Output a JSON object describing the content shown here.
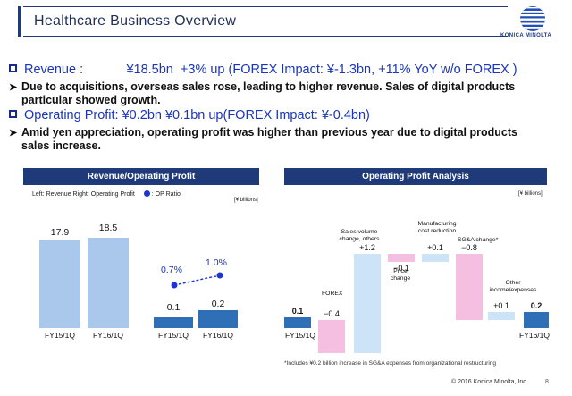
{
  "header": {
    "title": "Healthcare Business Overview",
    "logo_text": "KONICA MINOLTA"
  },
  "summary": {
    "revenue_line": "Revenue :            ¥18.5bn  +3% up (FOREX Impact: ¥-1.3bn, +11% YoY w/o FOREX )",
    "revenue_note_1": "Due to acquisitions, overseas sales rose, leading to higher revenue. Sales of digital products",
    "revenue_note_2": "particular showed growth.",
    "profit_line": "Operating Profit: ¥0.2bn ¥0.1bn up(FOREX Impact: ¥-0.4bn)",
    "profit_note_1": "Amid yen appreciation, operating profit was higher than previous year due to digital products",
    "profit_note_2": "sales increase."
  },
  "left_panel": {
    "heading": "Revenue/Operating Profit",
    "legend_text": "Left: Revenue  Right: Operating Profit",
    "legend_marker_label": ": OP Ratio",
    "unit": "[¥ billions]"
  },
  "right_panel": {
    "heading": "Operating Profit Analysis",
    "unit": "[¥ billions]"
  },
  "colors": {
    "navy": "#1f3a78",
    "revenue_bar": "#a9c8ec",
    "op_bar": "#2e6fb6",
    "pink": "#f4bfe0",
    "light_blue": "#cde3f7",
    "dot": "#1a35d0"
  },
  "chart_data": [
    {
      "type": "bar",
      "categories": [
        "FY15/1Q",
        "FY16/1Q"
      ],
      "series": [
        {
          "name": "Revenue",
          "values": [
            17.9,
            18.5
          ]
        }
      ],
      "value_labels": [
        "17.9",
        "18.5"
      ]
    },
    {
      "type": "bar",
      "categories": [
        "FY15/1Q",
        "FY16/1Q"
      ],
      "series": [
        {
          "name": "Operating Profit",
          "values": [
            0.1,
            0.2
          ]
        },
        {
          "name": "OP Ratio",
          "values": [
            0.7,
            1.0
          ]
        }
      ],
      "value_labels": [
        "0.1",
        "0.2"
      ],
      "ratio_labels": [
        "0.7%",
        "1.0%"
      ]
    },
    {
      "type": "bar",
      "categories": [
        "FY15/1Q",
        "FOREX",
        "Sales volume change, others",
        "Price change",
        "Manufacturing cost reduction",
        "SG&A change*",
        "Other income/expenses",
        "FY16/1Q"
      ],
      "values": [
        0.1,
        -0.4,
        1.2,
        -0.1,
        0.1,
        -0.8,
        0.1,
        0.2
      ],
      "value_labels": [
        "0.1",
        "−0.4",
        "+1.2",
        "−0.1",
        "+0.1",
        "−0.8",
        "+0.1",
        "0.2"
      ]
    }
  ],
  "footer": {
    "footnote": "*Includes ¥0.2 billion increase in SG&A expenses from organizational restructuring",
    "copyright": "© 2016 Konica Minolta, Inc.",
    "page": "8"
  }
}
